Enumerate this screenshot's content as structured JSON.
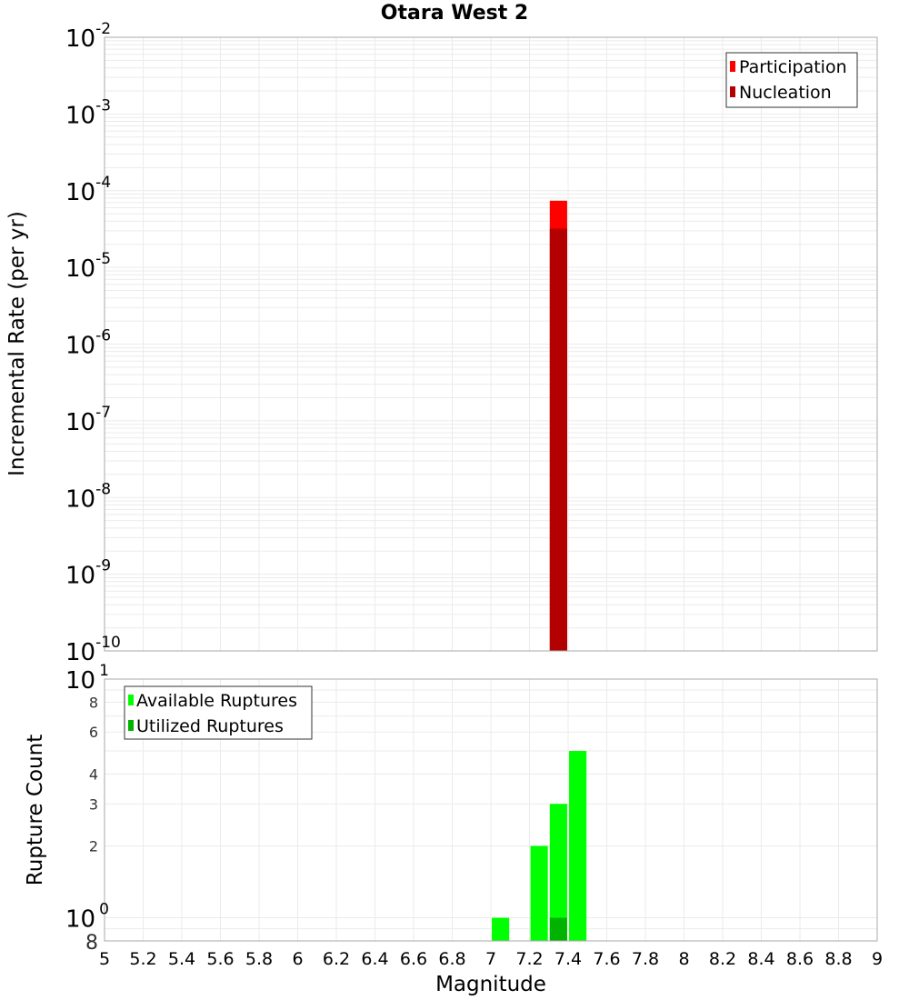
{
  "title": "Otara West 2",
  "chart_data": [
    {
      "type": "bar",
      "title": "Otara West 2",
      "xlabel": "Magnitude",
      "ylabel": "Incremental Rate (per yr)",
      "yscale": "log",
      "xlim": [
        5,
        9
      ],
      "ylim": [
        1e-10,
        0.01
      ],
      "grid": true,
      "bar_width": 0.09,
      "y_tick_exponents": [
        -2,
        -3,
        -4,
        -5,
        -6,
        -7,
        -8,
        -9,
        -10
      ],
      "legend": {
        "position": "top-right",
        "entries": [
          {
            "label": "Participation",
            "color": "#ff0000"
          },
          {
            "label": "Nucleation",
            "color": "#b30000"
          }
        ]
      },
      "series": [
        {
          "name": "Participation",
          "color": "#ff0000",
          "x": [
            7.35
          ],
          "values": [
            7.4e-05
          ]
        },
        {
          "name": "Nucleation",
          "color": "#b30000",
          "x": [
            7.35
          ],
          "values": [
            3.2e-05
          ]
        }
      ]
    },
    {
      "type": "bar",
      "xlabel": "Magnitude",
      "ylabel": "Rupture Count",
      "yscale": "log",
      "xlim": [
        5,
        9
      ],
      "ylim": [
        0.8,
        10
      ],
      "grid": true,
      "bar_width": 0.09,
      "x_ticks": [
        "5",
        "5.2",
        "5.4",
        "5.6",
        "5.8",
        "6",
        "6.2",
        "6.4",
        "6.6",
        "6.8",
        "7",
        "7.2",
        "7.4",
        "7.6",
        "7.8",
        "8",
        "8.2",
        "8.4",
        "8.6",
        "8.8",
        "9"
      ],
      "y_major_ticks": [
        {
          "value": 10,
          "label": "10",
          "exp": "1"
        },
        {
          "value": 1,
          "label": "10",
          "exp": "0"
        }
      ],
      "y_minor_ticks": [
        {
          "value": 8,
          "label": "8"
        },
        {
          "value": 6,
          "label": "6"
        },
        {
          "value": 4,
          "label": "4"
        },
        {
          "value": 3,
          "label": "3"
        },
        {
          "value": 2,
          "label": "2"
        },
        {
          "value": 0.8,
          "label": "8"
        }
      ],
      "legend": {
        "position": "top-left",
        "entries": [
          {
            "label": "Available Ruptures",
            "color": "#00ff00"
          },
          {
            "label": "Utilized Ruptures",
            "color": "#00b300"
          }
        ]
      },
      "series": [
        {
          "name": "Available Ruptures",
          "color": "#00ff00",
          "x": [
            7.05,
            7.25,
            7.35,
            7.45
          ],
          "values": [
            1,
            2,
            3,
            5
          ]
        },
        {
          "name": "Utilized Ruptures",
          "color": "#00b300",
          "x": [
            7.35
          ],
          "values": [
            1
          ]
        }
      ]
    }
  ]
}
